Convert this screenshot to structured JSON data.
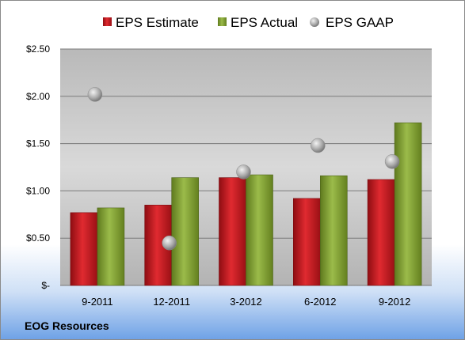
{
  "chart_data": {
    "type": "bar",
    "categories": [
      "9-2011",
      "12-2011",
      "3-2012",
      "6-2012",
      "9-2012"
    ],
    "series": [
      {
        "name": "EPS Estimate",
        "type": "bar",
        "values": [
          0.77,
          0.85,
          1.14,
          0.92,
          1.12
        ],
        "color": "#c0141c"
      },
      {
        "name": "EPS Actual",
        "type": "bar",
        "values": [
          0.82,
          1.14,
          1.17,
          1.16,
          1.72
        ],
        "color": "#7e9e2e"
      },
      {
        "name": "EPS GAAP",
        "type": "scatter",
        "values": [
          2.02,
          0.45,
          1.2,
          1.48,
          1.31
        ],
        "color": "#9a9a9a"
      }
    ],
    "ylim": [
      0,
      2.5
    ],
    "yticks": [
      {
        "value": 2.5,
        "label": "$2.50"
      },
      {
        "value": 2.0,
        "label": "$2.00"
      },
      {
        "value": 1.5,
        "label": "$1.50"
      },
      {
        "value": 1.0,
        "label": "$1.00"
      },
      {
        "value": 0.5,
        "label": "$0.50"
      },
      {
        "value": 0.0,
        "label": "$-"
      }
    ],
    "grid": true,
    "legend_position": "top"
  },
  "footer": {
    "label": "EOG Resources"
  }
}
